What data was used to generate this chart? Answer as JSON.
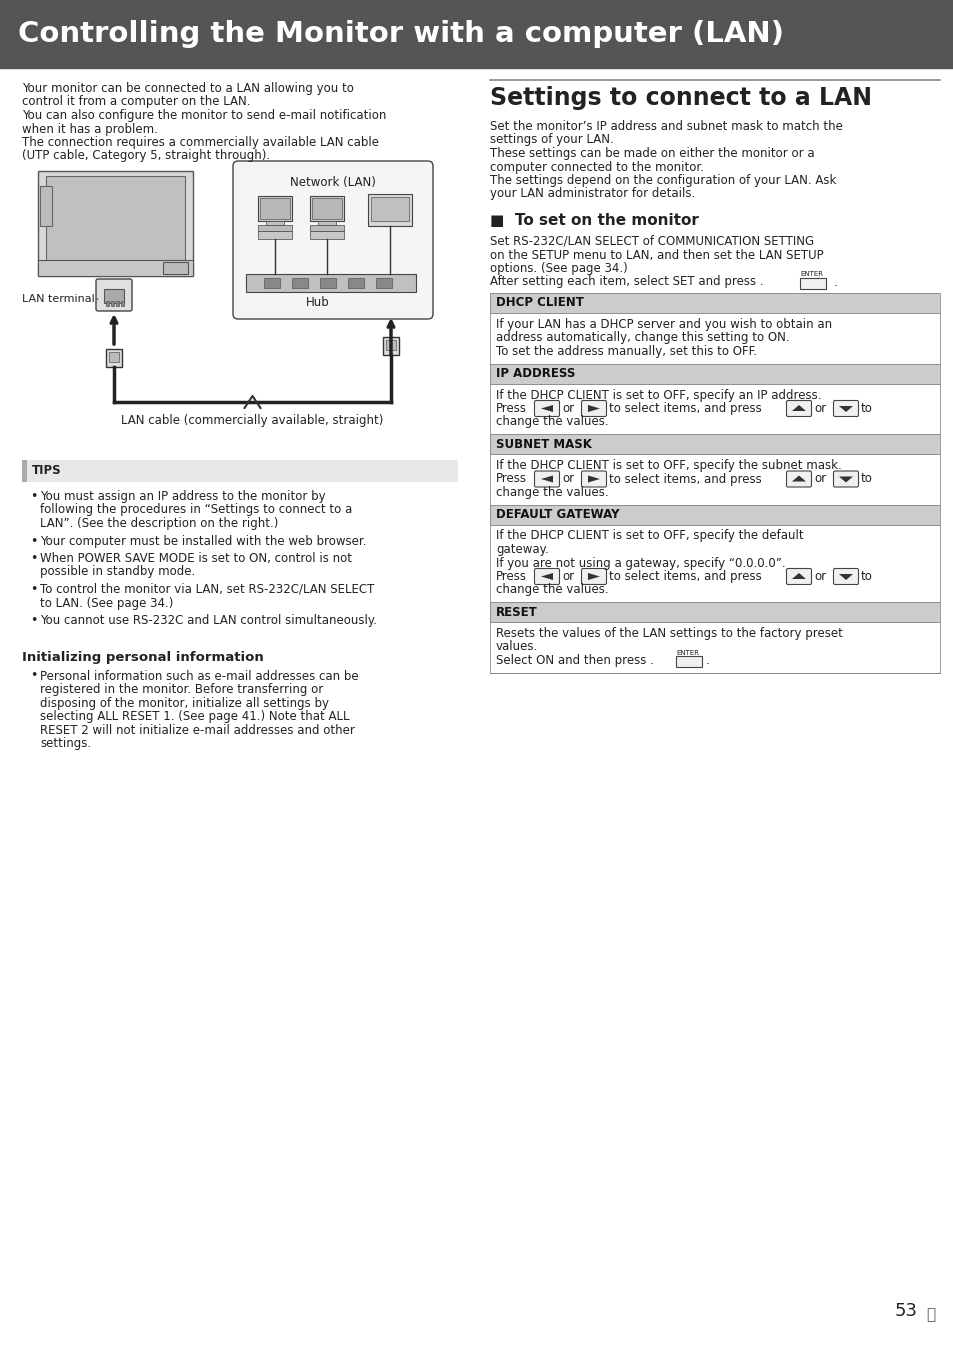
{
  "page_bg": "#ffffff",
  "header_bg": "#555555",
  "header_text": "Controlling the Monitor with a computer (LAN)",
  "header_text_color": "#ffffff",
  "header_font_size": 22,
  "left_intro_lines": [
    "Your monitor can be connected to a LAN allowing you to",
    "control it from a computer on the LAN.",
    "You can also configure the monitor to send e-mail notification",
    "when it has a problem.",
    "The connection requires a commercially available LAN cable",
    "(UTP cable, Category 5, straight through)."
  ],
  "tips_header": "TIPS",
  "tips_bullets": [
    "You must assign an IP address to the monitor by following the procedures in “Settings to connect to a LAN”. (See the description on the right.)",
    "Your computer must be installed with the web browser.",
    "When POWER SAVE MODE is set to ON, control is not possible in standby mode.",
    "To control the monitor via LAN, set RS-232C/LAN SELECT to LAN. (See page 34.)",
    "You cannot use RS-232C and LAN control simultaneously."
  ],
  "init_header": "Initializing personal information",
  "init_bullet": "Personal information such as e-mail addresses can be registered in the monitor. Before transferring or disposing of the monitor, initialize all settings by selecting ALL RESET 1. (See page 41.) Note that ALL RESET 2 will not initialize e-mail addresses and other settings.",
  "right_title": "Settings to connect to a LAN",
  "right_intro_lines": [
    "Set the monitor’s IP address and subnet mask to match the",
    "settings of your LAN.",
    "These settings can be made on either the monitor or a",
    "computer connected to the monitor.",
    "The settings depend on the configuration of your LAN. Ask",
    "your LAN administrator for details."
  ],
  "monitor_section_header": "■  To set on the monitor",
  "monitor_intro_lines": [
    "Set RS-232C/LAN SELECT of COMMUNICATION SETTING",
    "on the SETUP menu to LAN, and then set the LAN SETUP",
    "options. (See page 34.)",
    "After setting each item, select SET and press [ENTER]."
  ],
  "table_items": [
    {
      "header": "DHCP CLIENT",
      "body_lines": [
        "If your LAN has a DHCP server and you wish to obtain an",
        "address automatically, change this setting to ON.",
        "To set the address manually, set this to OFF."
      ]
    },
    {
      "header": "IP ADDRESS",
      "body_lines": [
        "If the DHCP CLIENT is set to OFF, specify an IP address.",
        "Press [<] or [>] to select items, and press [^] or [v] to",
        "change the values."
      ]
    },
    {
      "header": "SUBNET MASK",
      "body_lines": [
        "If the DHCP CLIENT is set to OFF, specify the subnet mask.",
        "Press [<] or [>] to select items, and press [^] or [v] to",
        "change the values."
      ]
    },
    {
      "header": "DEFAULT GATEWAY",
      "body_lines": [
        "If the DHCP CLIENT is set to OFF, specify the default",
        "gateway.",
        "If you are not using a gateway, specify “0.0.0.0”.",
        "Press [<] or [>] to select items, and press [^] or [v] to",
        "change the values."
      ]
    },
    {
      "header": "RESET",
      "body_lines": [
        "Resets the values of the LAN settings to the factory preset",
        "values.",
        "Select ON and then press [ENTER]."
      ]
    }
  ],
  "page_number": "53",
  "table_header_bg": "#cccccc",
  "divider_color": "#888888",
  "tips_bar_color": "#aaaaaa"
}
